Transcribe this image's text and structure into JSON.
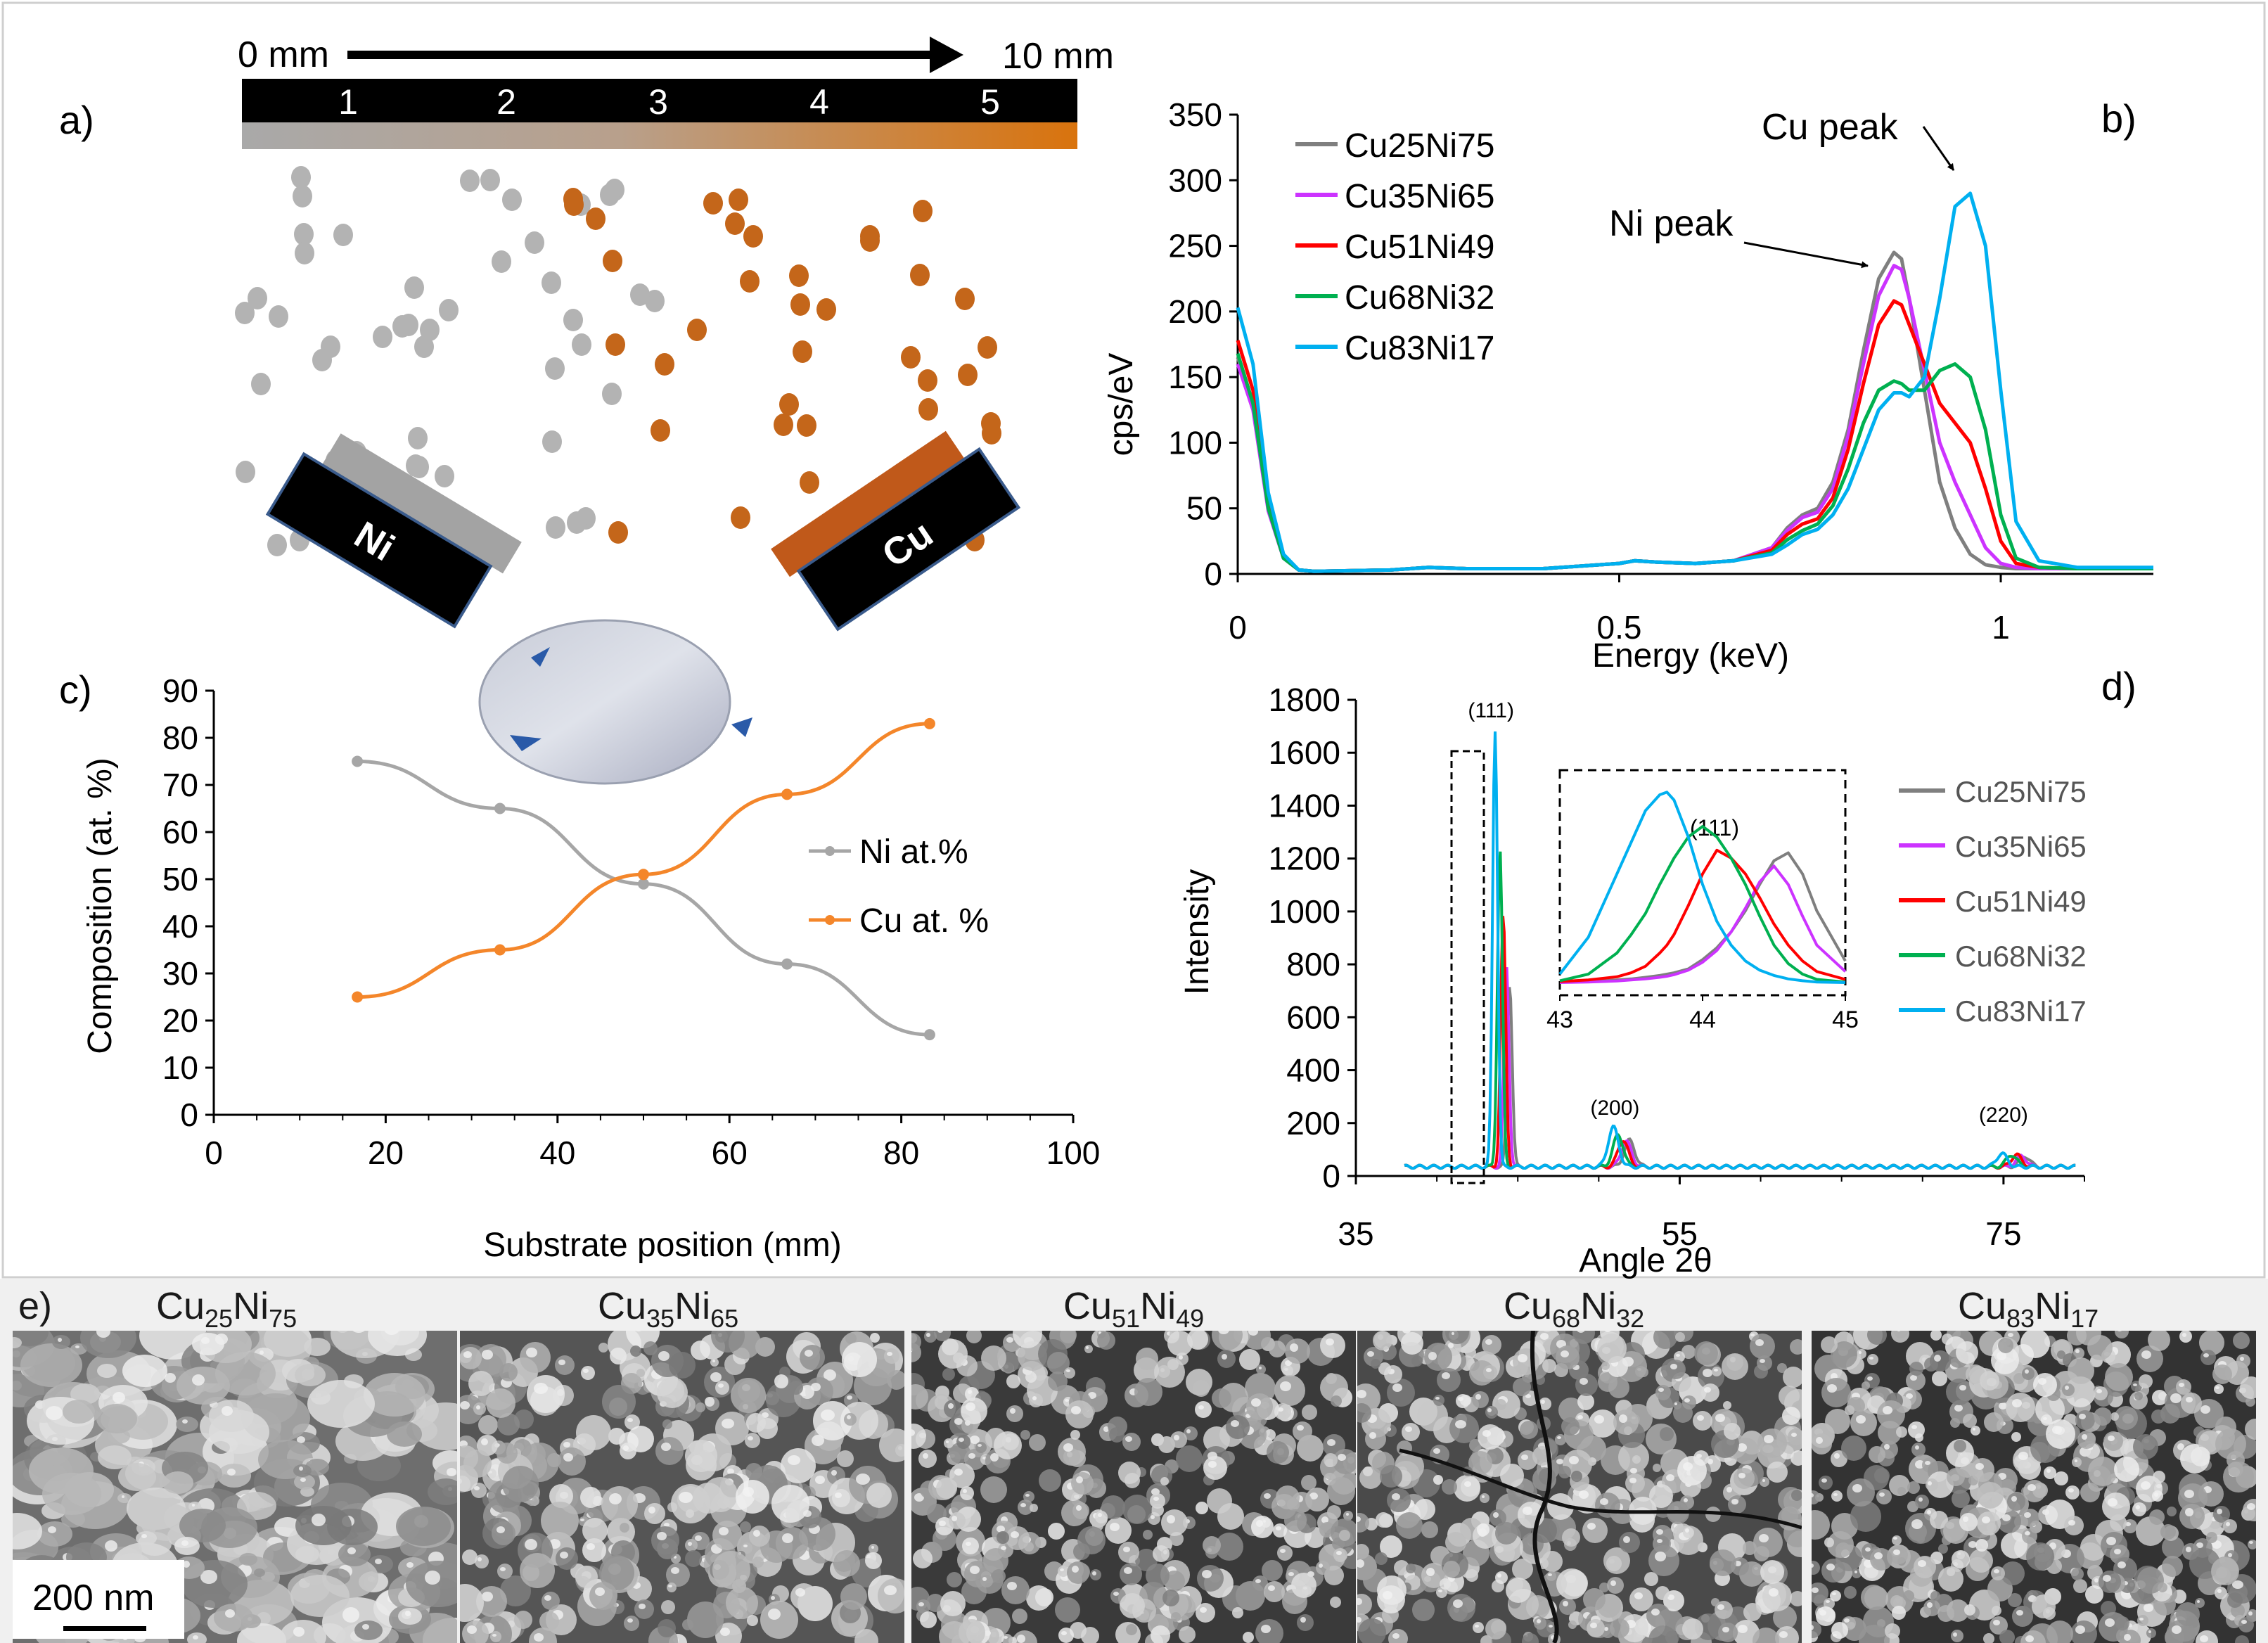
{
  "panel_a": {
    "label": "a)",
    "distance_start": "0 mm",
    "distance_end": "10 mm",
    "bar_positions": [
      "1",
      "2",
      "3",
      "4",
      "5"
    ],
    "target_ni": "Ni",
    "target_cu": "Cu",
    "colors": {
      "ni_particle": "#b3b3b3",
      "cu_particle": "#c4661a",
      "ni_target": "#9c9c9c",
      "cu_target": "#c0591a",
      "gradient_start": "#a9a9a9",
      "gradient_end": "#d9730d"
    }
  },
  "panel_b": {
    "label": "b)",
    "annotations": {
      "cu_peak": "Cu peak",
      "ni_peak": "Ni peak"
    }
  },
  "panel_c": {
    "label": "c)"
  },
  "panel_d": {
    "label": "d)",
    "inset_peak_label": "(111)"
  },
  "panel_e": {
    "label": "e)",
    "scale_bar": "200 nm",
    "samples": [
      {
        "base1": "Cu",
        "sub1": "25",
        "base2": "Ni",
        "sub2": "75"
      },
      {
        "base1": "Cu",
        "sub1": "35",
        "base2": "Ni",
        "sub2": "65"
      },
      {
        "base1": "Cu",
        "sub1": "51",
        "base2": "Ni",
        "sub2": "49"
      },
      {
        "base1": "Cu",
        "sub1": "68",
        "base2": "Ni",
        "sub2": "32"
      },
      {
        "base1": "Cu",
        "sub1": "83",
        "base2": "Ni",
        "sub2": "17"
      }
    ]
  },
  "chart_data": [
    {
      "id": "edx",
      "type": "line",
      "xlabel": "Energy (keV)",
      "ylabel": "cps/eV",
      "xlim": [
        0,
        1.2
      ],
      "ylim": [
        0,
        350
      ],
      "xticks": [
        0,
        0.5,
        1
      ],
      "yticks": [
        0,
        50,
        100,
        150,
        200,
        250,
        300,
        350
      ],
      "x": [
        0,
        0.02,
        0.04,
        0.06,
        0.08,
        0.1,
        0.2,
        0.25,
        0.3,
        0.4,
        0.5,
        0.52,
        0.55,
        0.6,
        0.65,
        0.7,
        0.72,
        0.74,
        0.76,
        0.78,
        0.8,
        0.82,
        0.84,
        0.86,
        0.87,
        0.88,
        0.9,
        0.92,
        0.94,
        0.96,
        0.98,
        1.0,
        1.02,
        1.05,
        1.1,
        1.2
      ],
      "series": [
        {
          "name": "Cu25Ni75",
          "color": "#7f7f7f",
          "values": [
            165,
            130,
            50,
            12,
            3,
            2,
            3,
            5,
            4,
            4,
            8,
            10,
            9,
            8,
            10,
            20,
            35,
            45,
            50,
            70,
            110,
            170,
            225,
            245,
            240,
            210,
            140,
            70,
            35,
            15,
            7,
            5,
            4,
            4,
            4,
            4
          ]
        },
        {
          "name": "Cu35Ni65",
          "color": "#cc33ff",
          "values": [
            160,
            125,
            48,
            12,
            3,
            2,
            3,
            5,
            4,
            4,
            8,
            10,
            9,
            8,
            10,
            20,
            33,
            43,
            47,
            65,
            105,
            160,
            212,
            235,
            232,
            210,
            155,
            100,
            70,
            45,
            20,
            8,
            5,
            4,
            4,
            4
          ]
        },
        {
          "name": "Cu51Ni49",
          "color": "#ff0000",
          "values": [
            178,
            140,
            55,
            13,
            3,
            2,
            3,
            5,
            4,
            4,
            8,
            10,
            9,
            8,
            10,
            18,
            30,
            38,
            42,
            58,
            95,
            145,
            190,
            208,
            205,
            190,
            160,
            130,
            115,
            100,
            65,
            25,
            8,
            5,
            4,
            4
          ]
        },
        {
          "name": "Cu68Ni32",
          "color": "#00b050",
          "values": [
            168,
            130,
            50,
            12,
            3,
            2,
            3,
            5,
            4,
            4,
            8,
            10,
            9,
            8,
            10,
            16,
            26,
            33,
            38,
            52,
            80,
            115,
            140,
            147,
            145,
            140,
            140,
            155,
            160,
            150,
            110,
            45,
            12,
            5,
            4,
            4
          ]
        },
        {
          "name": "Cu83Ni17",
          "color": "#00b0f0",
          "values": [
            203,
            160,
            62,
            15,
            3,
            2,
            3,
            5,
            4,
            4,
            8,
            10,
            9,
            8,
            10,
            15,
            22,
            30,
            34,
            45,
            65,
            95,
            125,
            138,
            138,
            135,
            150,
            210,
            280,
            290,
            250,
            140,
            40,
            10,
            5,
            5
          ]
        }
      ]
    },
    {
      "id": "composition",
      "type": "line",
      "xlabel": "Substrate position (mm)",
      "ylabel": "Composition (at. %)",
      "xlim": [
        0,
        100
      ],
      "ylim": [
        0,
        90
      ],
      "xticks": [
        0,
        20,
        40,
        60,
        80,
        100
      ],
      "yticks": [
        0,
        10,
        20,
        30,
        40,
        50,
        60,
        70,
        80,
        90
      ],
      "x": [
        16.7,
        33.3,
        50,
        66.7,
        83.3
      ],
      "series": [
        {
          "name": "Ni at.%",
          "color": "#a6a6a6",
          "values": [
            75,
            65,
            49,
            32,
            17
          ]
        },
        {
          "name": "Cu at. %",
          "color": "#f4862a",
          "values": [
            25,
            35,
            51,
            68,
            83
          ]
        }
      ]
    },
    {
      "id": "xrd",
      "type": "line",
      "xlabel": "Angle 2θ",
      "ylabel": "Intensity",
      "xlim": [
        35,
        80
      ],
      "ylim": [
        0,
        1800
      ],
      "xticks": [
        35,
        55,
        75
      ],
      "yticks": [
        0,
        200,
        400,
        600,
        800,
        1000,
        1200,
        1400,
        1600,
        1800
      ],
      "peak_labels": [
        {
          "text": "(111)",
          "x": 44
        },
        {
          "text": "(200)",
          "x": 51
        },
        {
          "text": "(220)",
          "x": 75
        }
      ],
      "series": [
        {
          "name": "Cu25Ni75",
          "color": "#7f7f7f",
          "peaks": [
            [
              44.5,
              690
            ],
            [
              51.9,
              100
            ],
            [
              76.3,
              40
            ]
          ]
        },
        {
          "name": "Cu35Ni65",
          "color": "#cc33ff",
          "peaks": [
            [
              44.3,
              760
            ],
            [
              51.7,
              95
            ],
            [
              76.1,
              40
            ]
          ]
        },
        {
          "name": "Cu51Ni49",
          "color": "#ff0000",
          "peaks": [
            [
              44.1,
              950
            ],
            [
              51.5,
              100
            ],
            [
              75.8,
              45
            ]
          ]
        },
        {
          "name": "Cu68Ni32",
          "color": "#00b050",
          "peaks": [
            [
              43.9,
              1200
            ],
            [
              51.2,
              120
            ],
            [
              75.5,
              45
            ]
          ]
        },
        {
          "name": "Cu83Ni17",
          "color": "#00b0f0",
          "peaks": [
            [
              43.6,
              1650
            ],
            [
              50.9,
              150
            ],
            [
              74.9,
              50
            ]
          ]
        }
      ],
      "inset": {
        "xlim": [
          43,
          45
        ],
        "xticks": [
          43,
          44,
          45
        ],
        "x": [
          43.0,
          43.2,
          43.4,
          43.5,
          43.6,
          43.7,
          43.75,
          43.8,
          43.9,
          44.0,
          44.1,
          44.2,
          44.3,
          44.4,
          44.5,
          44.6,
          44.7,
          44.8,
          45.0
        ],
        "series": [
          {
            "name": "Cu25Ni75",
            "values": [
              10,
              12,
              18,
              22,
              28,
              35,
              40,
              45,
              60,
              95,
              140,
              200,
              280,
              380,
              470,
              500,
              420,
              280,
              90
            ]
          },
          {
            "name": "Cu35Ni65",
            "values": [
              8,
              10,
              14,
              18,
              22,
              28,
              32,
              38,
              55,
              85,
              130,
              200,
              290,
              390,
              450,
              380,
              260,
              150,
              50
            ]
          },
          {
            "name": "Cu51Ni49",
            "values": [
              12,
              18,
              30,
              45,
              70,
              120,
              150,
              190,
              300,
              420,
              510,
              480,
              420,
              330,
              230,
              150,
              90,
              50,
              20
            ]
          },
          {
            "name": "Cu68Ni32",
            "values": [
              15,
              40,
              120,
              190,
              270,
              380,
              430,
              480,
              560,
              600,
              560,
              480,
              380,
              260,
              150,
              80,
              40,
              20,
              10
            ]
          },
          {
            "name": "Cu83Ni17",
            "values": [
              40,
              180,
              420,
              540,
              660,
              720,
              730,
              700,
              560,
              380,
              240,
              150,
              90,
              55,
              35,
              22,
              15,
              10,
              8
            ]
          }
        ]
      }
    }
  ]
}
